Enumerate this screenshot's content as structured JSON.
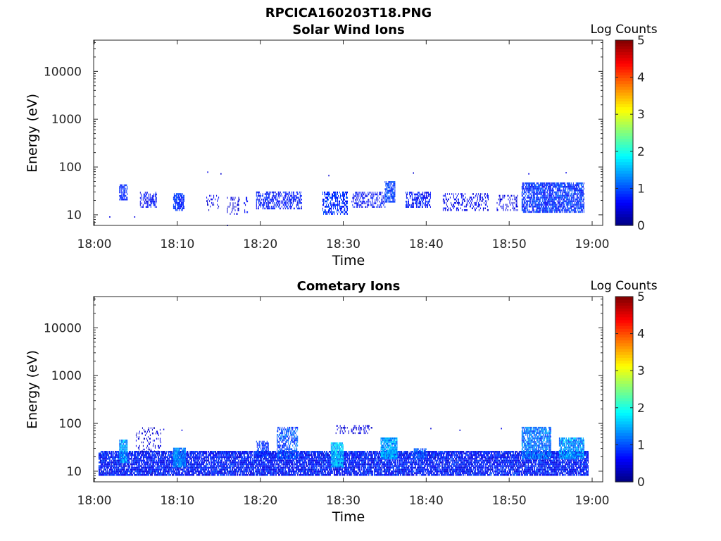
{
  "figure_title": "RPCICA160203T18.PNG",
  "chart_data": [
    {
      "type": "heatmap",
      "title": "Solar Wind Ions",
      "xlabel": "Time",
      "ylabel": "Energy (eV)",
      "x_ticks": [
        "18:00",
        "18:10",
        "18:20",
        "18:30",
        "18:40",
        "18:50",
        "19:00"
      ],
      "x_range": [
        "18:00",
        "19:00"
      ],
      "y_scale": "log",
      "y_ticks": [
        10,
        100,
        1000,
        10000
      ],
      "y_tick_labels": [
        "10",
        "100",
        "1000",
        "10000"
      ],
      "y_range": [
        6,
        45000
      ],
      "colorbar": {
        "label": "Log Counts",
        "range": [
          0,
          5
        ],
        "ticks": [
          "0",
          "1",
          "2",
          "3",
          "4",
          "5"
        ],
        "colormap": "jet"
      },
      "grid": false,
      "clusters": [
        {
          "t": [
            18.0,
            18.5
          ],
          "e": [
            10,
            25
          ],
          "c": [
            0.4,
            0.9
          ],
          "density": 0.25
        },
        {
          "t": [
            3.0,
            4.0
          ],
          "e": [
            20,
            40
          ],
          "c": [
            0.6,
            1.0
          ],
          "density": 0.7
        },
        {
          "t": [
            5.5,
            7.5
          ],
          "e": [
            14,
            28
          ],
          "c": [
            0.4,
            0.9
          ],
          "density": 0.45
        },
        {
          "t": [
            9.5,
            10.8
          ],
          "e": [
            12,
            28
          ],
          "c": [
            0.6,
            1.1
          ],
          "density": 0.75
        },
        {
          "t": [
            13.5,
            15.0
          ],
          "e": [
            12,
            25
          ],
          "c": [
            0.3,
            0.7
          ],
          "density": 0.2
        },
        {
          "t": [
            16.0,
            17.5
          ],
          "e": [
            10,
            22
          ],
          "c": [
            0.3,
            0.6
          ],
          "density": 0.2
        },
        {
          "t": [
            19.5,
            25.0
          ],
          "e": [
            13,
            30
          ],
          "c": [
            0.4,
            1.0
          ],
          "density": 0.5
        },
        {
          "t": [
            27.5,
            30.5
          ],
          "e": [
            10,
            30
          ],
          "c": [
            0.5,
            1.1
          ],
          "density": 0.55
        },
        {
          "t": [
            31.0,
            35.0
          ],
          "e": [
            14,
            28
          ],
          "c": [
            0.4,
            0.9
          ],
          "density": 0.4
        },
        {
          "t": [
            35.0,
            36.2
          ],
          "e": [
            18,
            50
          ],
          "c": [
            0.7,
            1.2
          ],
          "density": 0.7
        },
        {
          "t": [
            37.5,
            40.5
          ],
          "e": [
            14,
            30
          ],
          "c": [
            0.4,
            1.0
          ],
          "density": 0.55
        },
        {
          "t": [
            42.0,
            47.5
          ],
          "e": [
            12,
            28
          ],
          "c": [
            0.3,
            0.8
          ],
          "density": 0.3
        },
        {
          "t": [
            48.5,
            51.0
          ],
          "e": [
            12,
            25
          ],
          "c": [
            0.3,
            0.7
          ],
          "density": 0.25
        },
        {
          "t": [
            51.5,
            59.0
          ],
          "e": [
            11,
            45
          ],
          "c": [
            0.5,
            1.2
          ],
          "density": 0.75
        }
      ],
      "scatter_points": [
        {
          "t": 13.6,
          "e": 78,
          "c": 0.5
        },
        {
          "t": 15.2,
          "e": 72,
          "c": 0.4
        },
        {
          "t": 16.0,
          "e": 6,
          "c": 0.5
        },
        {
          "t": 28.2,
          "e": 66,
          "c": 0.4
        },
        {
          "t": 38.4,
          "e": 75,
          "c": 0.4
        },
        {
          "t": 52.3,
          "e": 72,
          "c": 0.5
        },
        {
          "t": 56.8,
          "e": 76,
          "c": 0.5
        },
        {
          "t": 4.8,
          "e": 9,
          "c": 0.5
        },
        {
          "t": 1.8,
          "e": 9,
          "c": 0.5
        }
      ]
    },
    {
      "type": "heatmap",
      "title": "Cometary Ions",
      "xlabel": "Time",
      "ylabel": "Energy (eV)",
      "x_ticks": [
        "18:00",
        "18:10",
        "18:20",
        "18:30",
        "18:40",
        "18:50",
        "19:00"
      ],
      "x_range": [
        "18:00",
        "19:00"
      ],
      "y_scale": "log",
      "y_ticks": [
        10,
        100,
        1000,
        10000
      ],
      "y_tick_labels": [
        "10",
        "100",
        "1000",
        "10000"
      ],
      "y_range": [
        6,
        45000
      ],
      "colorbar": {
        "label": "Log Counts",
        "range": [
          0,
          5
        ],
        "ticks": [
          "0",
          "1",
          "2",
          "3",
          "4",
          "5"
        ],
        "colormap": "jet"
      },
      "grid": false,
      "band": {
        "t": [
          0.5,
          59.5
        ],
        "e": [
          8,
          26
        ],
        "c": [
          0.3,
          1.1
        ],
        "density": 0.85
      },
      "clusters": [
        {
          "t": [
            3.0,
            4.0
          ],
          "e": [
            15,
            45
          ],
          "c": [
            1.0,
            1.8
          ],
          "density": 0.9
        },
        {
          "t": [
            5.0,
            8.0
          ],
          "e": [
            25,
            80
          ],
          "c": [
            0.2,
            0.6
          ],
          "density": 0.15
        },
        {
          "t": [
            9.5,
            11.0
          ],
          "e": [
            12,
            30
          ],
          "c": [
            1.0,
            1.6
          ],
          "density": 0.9
        },
        {
          "t": [
            19.5,
            21.0
          ],
          "e": [
            20,
            40
          ],
          "c": [
            0.6,
            1.2
          ],
          "density": 0.6
        },
        {
          "t": [
            22.0,
            24.5
          ],
          "e": [
            18,
            80
          ],
          "c": [
            0.6,
            1.4
          ],
          "density": 0.6
        },
        {
          "t": [
            28.5,
            30.0
          ],
          "e": [
            12,
            40
          ],
          "c": [
            1.2,
            2.0
          ],
          "density": 0.9
        },
        {
          "t": [
            29.0,
            33.5
          ],
          "e": [
            60,
            90
          ],
          "c": [
            0.3,
            0.6
          ],
          "density": 0.25
        },
        {
          "t": [
            34.5,
            36.5
          ],
          "e": [
            18,
            50
          ],
          "c": [
            1.0,
            1.8
          ],
          "density": 0.9
        },
        {
          "t": [
            38.5,
            40.0
          ],
          "e": [
            18,
            30
          ],
          "c": [
            0.8,
            1.4
          ],
          "density": 0.7
        },
        {
          "t": [
            51.5,
            55.0
          ],
          "e": [
            18,
            80
          ],
          "c": [
            0.8,
            1.6
          ],
          "density": 0.8
        },
        {
          "t": [
            56.0,
            59.0
          ],
          "e": [
            18,
            50
          ],
          "c": [
            0.9,
            1.8
          ],
          "density": 0.85
        }
      ],
      "scatter_points": [
        {
          "t": 8.3,
          "e": 75,
          "c": 0.5
        },
        {
          "t": 10.5,
          "e": 72,
          "c": 0.5
        },
        {
          "t": 40.5,
          "e": 78,
          "c": 0.4
        },
        {
          "t": 44.0,
          "e": 72,
          "c": 0.4
        },
        {
          "t": 49.0,
          "e": 78,
          "c": 0.5
        }
      ]
    }
  ]
}
